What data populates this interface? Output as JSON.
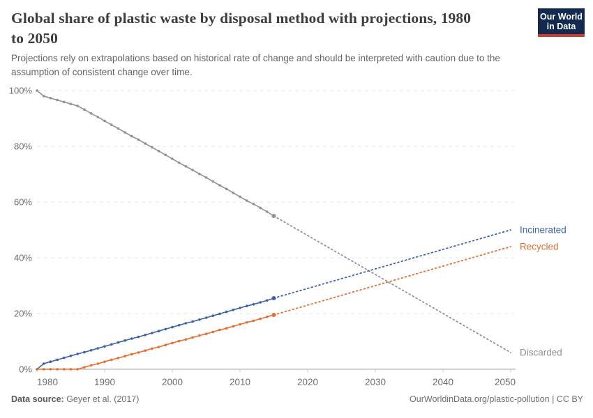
{
  "header": {
    "title_lines": [
      "Global share of plastic waste by disposal method with projections, 1980",
      "to 2050"
    ],
    "subtitle_lines": [
      "Projections rely on extrapolations based on historical rate of change and should be interpreted with caution due to the",
      "assumption of consistent change over time."
    ]
  },
  "logo": {
    "line1": "Our World",
    "line2": "in Data",
    "bg_color": "#132a4e",
    "accent_color": "#cf3a31"
  },
  "footer": {
    "source_label": "Data source:",
    "source_value": " Geyer et al. (2017)",
    "right_text": "OurWorldinData.org/plastic-pollution | CC BY"
  },
  "chart_data": {
    "type": "line",
    "title": "Global share of plastic waste by disposal method with projections, 1980 to 2050",
    "xlabel": "",
    "ylabel": "",
    "xlim": [
      1980,
      2050
    ],
    "ylim": [
      0,
      100
    ],
    "grid": true,
    "grid_style": "dashed",
    "legend_position": "end-of-line-labels",
    "x_ticks": [
      "1980",
      "1990",
      "2000",
      "2010",
      "2020",
      "2030",
      "2040",
      "2050"
    ],
    "y_ticks": [
      "0%",
      "20%",
      "40%",
      "60%",
      "80%",
      "100%"
    ],
    "projection_start_year": 2015,
    "colors": {
      "grid": "#e5e5e5",
      "axis": "#a3a3a3",
      "tick": "#c9c9c9",
      "tick_label": "#6f6f6f"
    },
    "series": [
      {
        "name": "Discarded",
        "color": "#919191",
        "historical": {
          "years": [
            1980,
            1981,
            1982,
            1983,
            1984,
            1985,
            1986,
            1987,
            1988,
            1989,
            1990,
            1991,
            1992,
            1993,
            1994,
            1995,
            1996,
            1997,
            1998,
            1999,
            2000,
            2001,
            2002,
            2003,
            2004,
            2005,
            2006,
            2007,
            2008,
            2009,
            2010,
            2011,
            2012,
            2013,
            2014,
            2015
          ],
          "values": [
            100,
            98.0,
            97.3,
            96.6,
            95.9,
            95.2,
            94.5,
            93.2,
            91.8,
            90.5,
            89.1,
            87.7,
            86.4,
            85.0,
            83.6,
            82.4,
            81.0,
            79.6,
            78.3,
            76.9,
            75.5,
            74.1,
            72.8,
            71.5,
            70.1,
            68.8,
            67.4,
            66.0,
            64.7,
            63.3,
            61.9,
            60.5,
            59.3,
            57.9,
            56.5,
            55.0
          ]
        },
        "projection": {
          "years": [
            2015,
            2020,
            2025,
            2030,
            2035,
            2040,
            2045,
            2050
          ],
          "values": [
            55,
            48,
            41,
            34,
            27,
            20,
            13,
            6
          ]
        }
      },
      {
        "name": "Incinerated",
        "color": "#3d62a9",
        "historical": {
          "years": [
            1980,
            1981,
            1982,
            1983,
            1984,
            1985,
            1986,
            1987,
            1988,
            1989,
            1990,
            1991,
            1992,
            1993,
            1994,
            1995,
            1996,
            1997,
            1998,
            1999,
            2000,
            2001,
            2002,
            2003,
            2004,
            2005,
            2006,
            2007,
            2008,
            2009,
            2010,
            2011,
            2012,
            2013,
            2014,
            2015
          ],
          "values": [
            0,
            2.0,
            2.7,
            3.4,
            4.1,
            4.8,
            5.5,
            6.1,
            6.8,
            7.5,
            8.2,
            8.9,
            9.6,
            10.3,
            11.0,
            11.6,
            12.3,
            13.0,
            13.7,
            14.4,
            15.1,
            15.8,
            16.5,
            17.1,
            17.8,
            18.5,
            19.2,
            19.9,
            20.6,
            21.3,
            22.0,
            22.7,
            23.3,
            24.0,
            24.7,
            25.5
          ]
        },
        "projection": {
          "years": [
            2015,
            2020,
            2025,
            2030,
            2035,
            2040,
            2045,
            2050
          ],
          "values": [
            25.5,
            29,
            32.5,
            36,
            39.5,
            43,
            46.5,
            50
          ]
        }
      },
      {
        "name": "Recycled",
        "color": "#e56f33",
        "historical": {
          "years": [
            1980,
            1981,
            1982,
            1983,
            1984,
            1985,
            1986,
            1987,
            1988,
            1989,
            1990,
            1991,
            1992,
            1993,
            1994,
            1995,
            1996,
            1997,
            1998,
            1999,
            2000,
            2001,
            2002,
            2003,
            2004,
            2005,
            2006,
            2007,
            2008,
            2009,
            2010,
            2011,
            2012,
            2013,
            2014,
            2015
          ],
          "values": [
            0,
            0,
            0,
            0,
            0,
            0,
            0,
            0.7,
            1.4,
            2.0,
            2.7,
            3.4,
            4.0,
            4.7,
            5.4,
            6.0,
            6.7,
            7.4,
            8.0,
            8.7,
            9.4,
            10.1,
            10.7,
            11.4,
            12.1,
            12.7,
            13.4,
            14.1,
            14.7,
            15.4,
            16.1,
            16.8,
            17.4,
            18.1,
            18.8,
            19.5
          ]
        },
        "projection": {
          "years": [
            2015,
            2020,
            2025,
            2030,
            2035,
            2040,
            2045,
            2050
          ],
          "values": [
            19.5,
            23,
            26.5,
            30,
            33.5,
            37,
            40.5,
            44
          ]
        }
      }
    ]
  }
}
